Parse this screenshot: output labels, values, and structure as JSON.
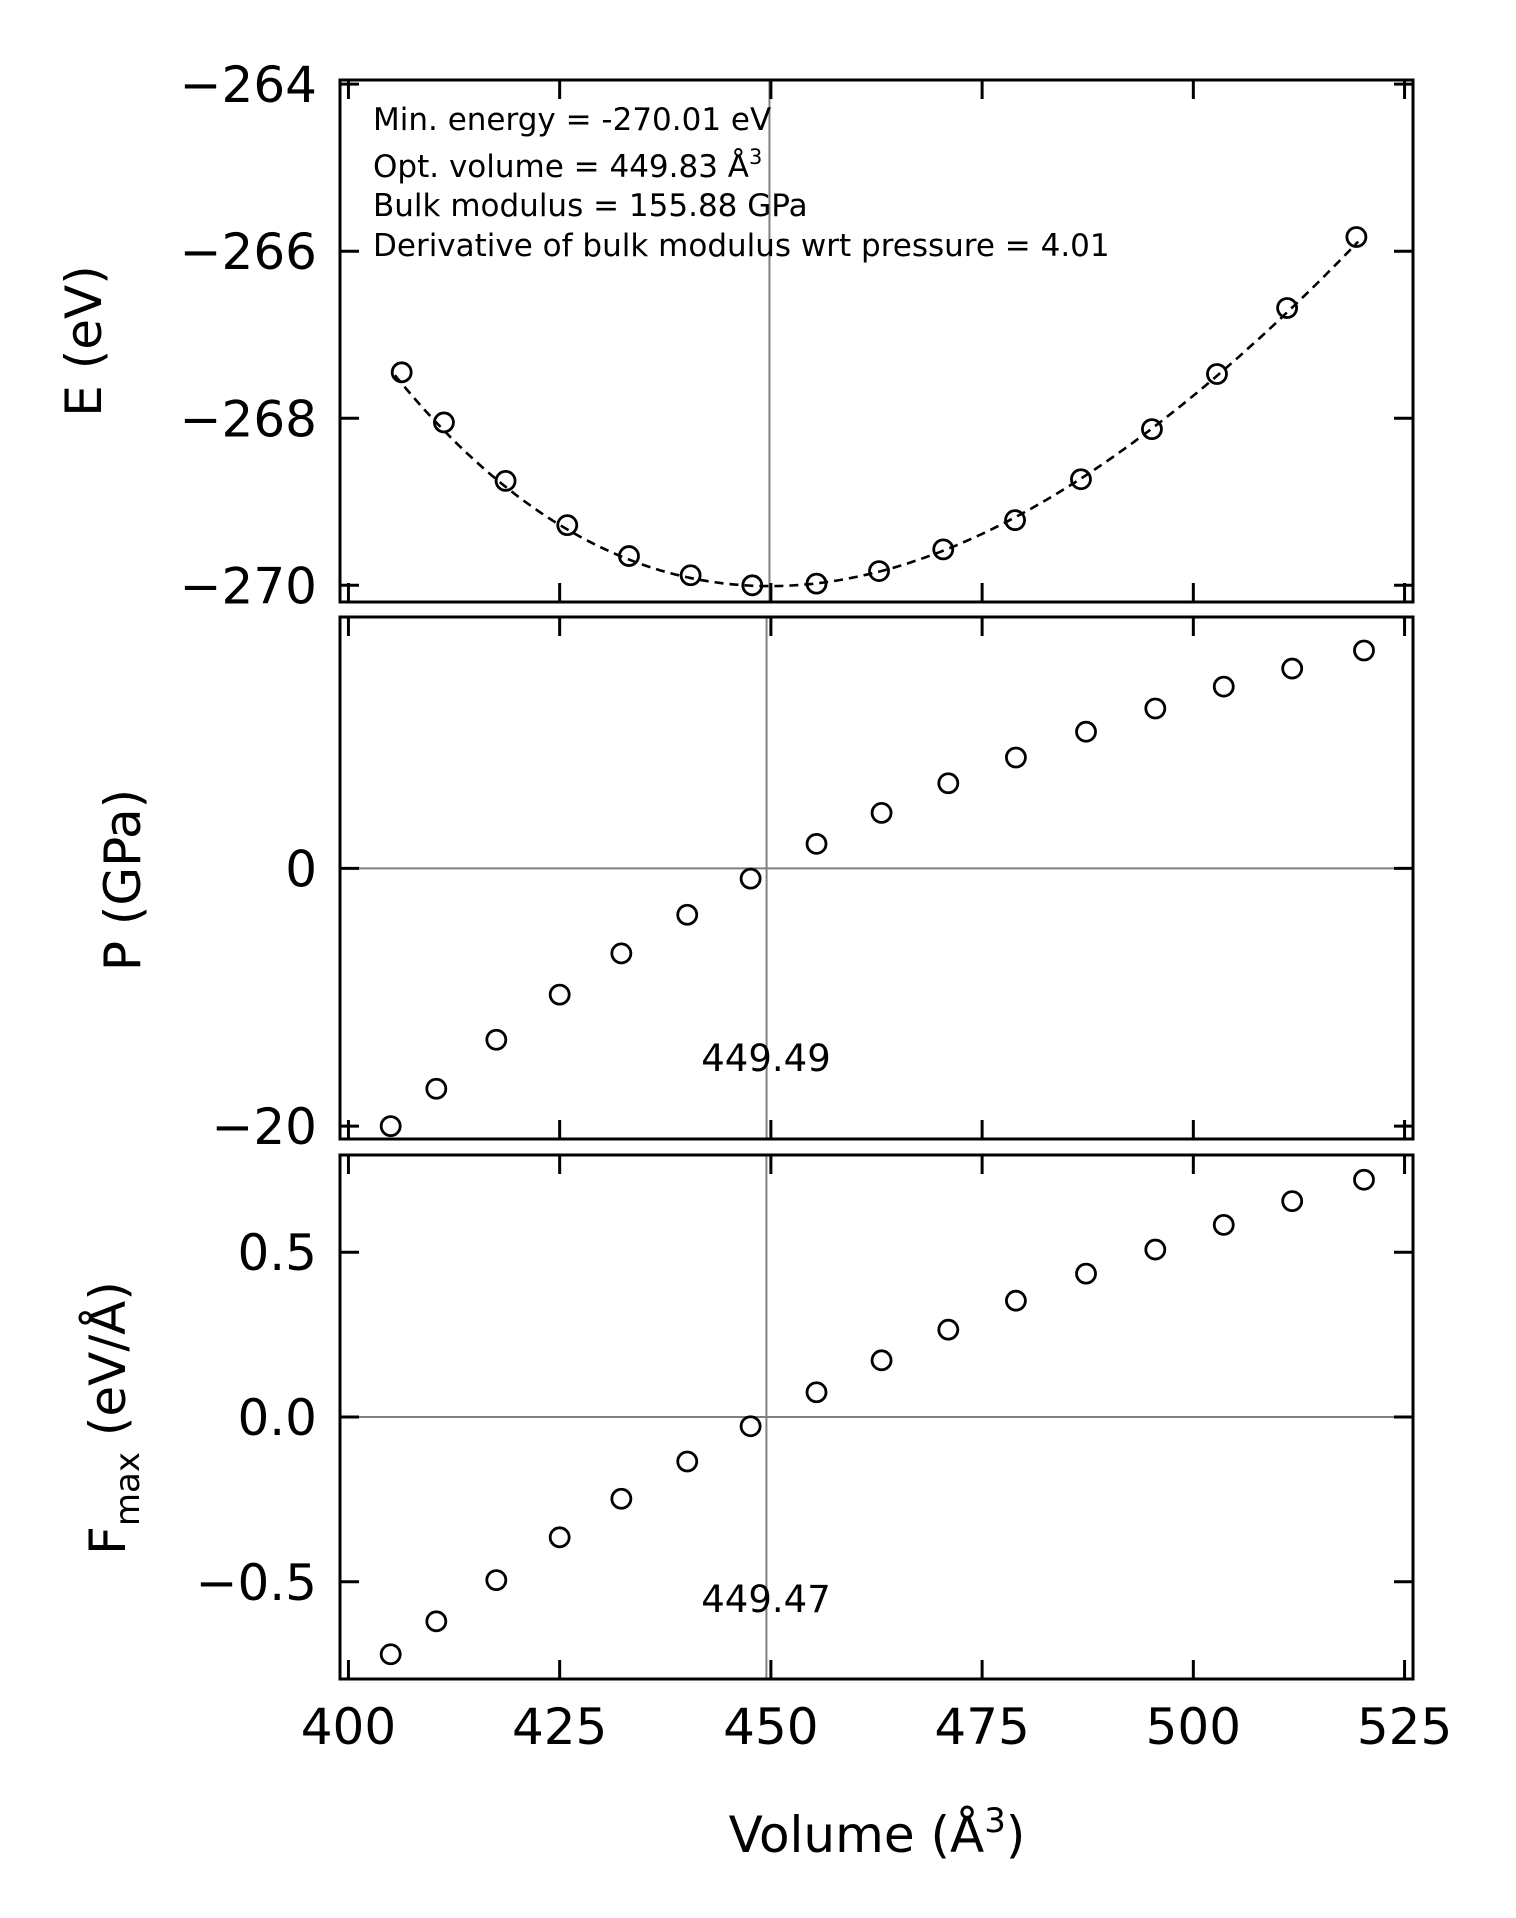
{
  "chart_data": [
    {
      "type": "scatter",
      "panel": "energy",
      "ylabel": "E (eV)",
      "xlim": [
        399,
        526
      ],
      "ylim": [
        -270.2,
        -263.95
      ],
      "yticks": [
        -264,
        -266,
        -268,
        -270
      ],
      "ytick_labels": [
        "−264",
        "−266",
        "−268",
        "−270"
      ],
      "x": [
        406.3,
        411.3,
        418.6,
        425.9,
        433.2,
        440.5,
        447.8,
        455.4,
        462.8,
        470.4,
        478.9,
        486.7,
        495.1,
        502.8,
        511.1,
        519.3
      ],
      "y": [
        -267.45,
        -268.05,
        -268.75,
        -269.28,
        -269.65,
        -269.88,
        -270.0,
        -269.98,
        -269.83,
        -269.57,
        -269.22,
        -268.73,
        -268.13,
        -267.47,
        -266.68,
        -265.83
      ],
      "fit_curve": {
        "style": "dashed",
        "min_energy": -270.01,
        "opt_volume": 449.83,
        "bulk_modulus_gpa": 155.88,
        "x_range": [
          405.5,
          519.5
        ]
      },
      "vline_x": 449.83,
      "annotations": [
        "Min. energy = -270.01 eV",
        "Opt. volume = 449.83 Å",
        "Bulk modulus = 155.88 GPa",
        "Derivative of bulk modulus wrt pressure = 4.01"
      ],
      "annotation_superscript": "3"
    },
    {
      "type": "scatter",
      "panel": "pressure",
      "ylabel": "P (GPa)",
      "xlim": [
        399,
        526
      ],
      "ylim": [
        -21.0,
        19.5
      ],
      "yticks": [
        0,
        -20
      ],
      "ytick_labels": [
        "0",
        "−20"
      ],
      "x": [
        405.0,
        410.4,
        417.5,
        425.0,
        432.3,
        440.1,
        447.6,
        455.4,
        463.1,
        471.0,
        479.0,
        487.3,
        495.5,
        503.6,
        511.7,
        520.2
      ],
      "y": [
        -20.0,
        -17.1,
        -13.3,
        -9.8,
        -6.6,
        -3.6,
        -0.8,
        1.9,
        4.3,
        6.6,
        8.6,
        10.6,
        12.4,
        14.1,
        15.5,
        16.9
      ],
      "hline_y": 0,
      "vline_x": 449.49,
      "vline_label": "449.49"
    },
    {
      "type": "scatter",
      "panel": "force",
      "ylabel": "F",
      "ylabel_subscript": "max",
      "ylabel_suffix": " (eV/Å)",
      "xlabel": "Volume (Å",
      "xlabel_superscript": "3",
      "xlabel_close": ")",
      "xlim": [
        399,
        526
      ],
      "ylim": [
        -0.795,
        0.795
      ],
      "yticks": [
        0.5,
        0.0,
        -0.5
      ],
      "ytick_labels": [
        "0.5",
        "0.0",
        "−0.5"
      ],
      "xticks": [
        400,
        425,
        450,
        475,
        500,
        525
      ],
      "xtick_labels": [
        "400",
        "425",
        "450",
        "475",
        "500",
        "525"
      ],
      "x": [
        405.0,
        410.4,
        417.5,
        425.0,
        432.3,
        440.1,
        447.6,
        455.4,
        463.1,
        471.0,
        479.0,
        487.3,
        495.5,
        503.6,
        511.7,
        520.2
      ],
      "y": [
        -0.72,
        -0.62,
        -0.495,
        -0.365,
        -0.248,
        -0.135,
        -0.028,
        0.075,
        0.172,
        0.265,
        0.353,
        0.435,
        0.508,
        0.583,
        0.655,
        0.72
      ],
      "hline_y": 0.0,
      "vline_x": 449.47,
      "vline_label": "449.47"
    }
  ]
}
